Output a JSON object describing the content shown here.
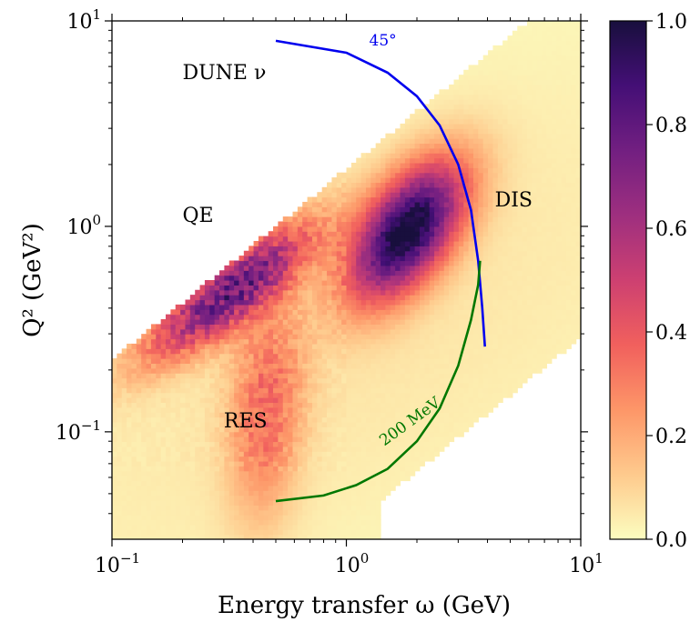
{
  "chart_data": {
    "type": "heatmap",
    "title": "",
    "xlabel": "Energy transfer ω (GeV)",
    "ylabel": "Q² (GeV²)",
    "x_scale": "log",
    "y_scale": "log",
    "xlim": [
      0.1,
      10
    ],
    "ylim": [
      0.03,
      10
    ],
    "grid": false,
    "x_ticks": [
      {
        "value": 0.1,
        "base": "10",
        "exp": "−1"
      },
      {
        "value": 1,
        "base": "10",
        "exp": "0"
      },
      {
        "value": 10,
        "base": "10",
        "exp": "1"
      }
    ],
    "y_ticks": [
      {
        "value": 0.1,
        "base": "10",
        "exp": "−1"
      },
      {
        "value": 1,
        "base": "10",
        "exp": "0"
      },
      {
        "value": 10,
        "base": "10",
        "exp": "1"
      }
    ],
    "colorbar": {
      "colormap": "magma_r",
      "range": [
        0,
        1
      ],
      "ticks": [
        "0.0",
        "0.2",
        "0.4",
        "0.6",
        "0.8",
        "1.0"
      ]
    },
    "annotations": {
      "dune": {
        "text": "DUNE ν",
        "x": 0.2,
        "y": 5.2
      },
      "qe": {
        "text": "QE",
        "x": 0.2,
        "y": 1.05
      },
      "res": {
        "text": "RES",
        "x": 0.3,
        "y": 0.105
      },
      "dis": {
        "text": "DIS",
        "x": 4.3,
        "y": 1.25
      }
    },
    "curves": [
      {
        "label": "45°",
        "color": "#0000ee",
        "label_at": {
          "x": 1.25,
          "y": 7.6
        },
        "points": [
          [
            0.5,
            8.0
          ],
          [
            1.0,
            7.0
          ],
          [
            1.5,
            5.6
          ],
          [
            2.0,
            4.3
          ],
          [
            2.5,
            3.1
          ],
          [
            3.0,
            2.0
          ],
          [
            3.4,
            1.2
          ],
          [
            3.65,
            0.68
          ],
          [
            3.8,
            0.4
          ],
          [
            3.9,
            0.26
          ]
        ]
      },
      {
        "label": "200 MeV",
        "color": "#007700",
        "label_at": {
          "x": 1.45,
          "y": 0.085
        },
        "points": [
          [
            0.5,
            0.046
          ],
          [
            0.8,
            0.049
          ],
          [
            1.1,
            0.055
          ],
          [
            1.5,
            0.066
          ],
          [
            2.0,
            0.09
          ],
          [
            2.5,
            0.13
          ],
          [
            3.0,
            0.21
          ],
          [
            3.4,
            0.35
          ],
          [
            3.65,
            0.52
          ],
          [
            3.72,
            0.68
          ]
        ]
      }
    ]
  }
}
